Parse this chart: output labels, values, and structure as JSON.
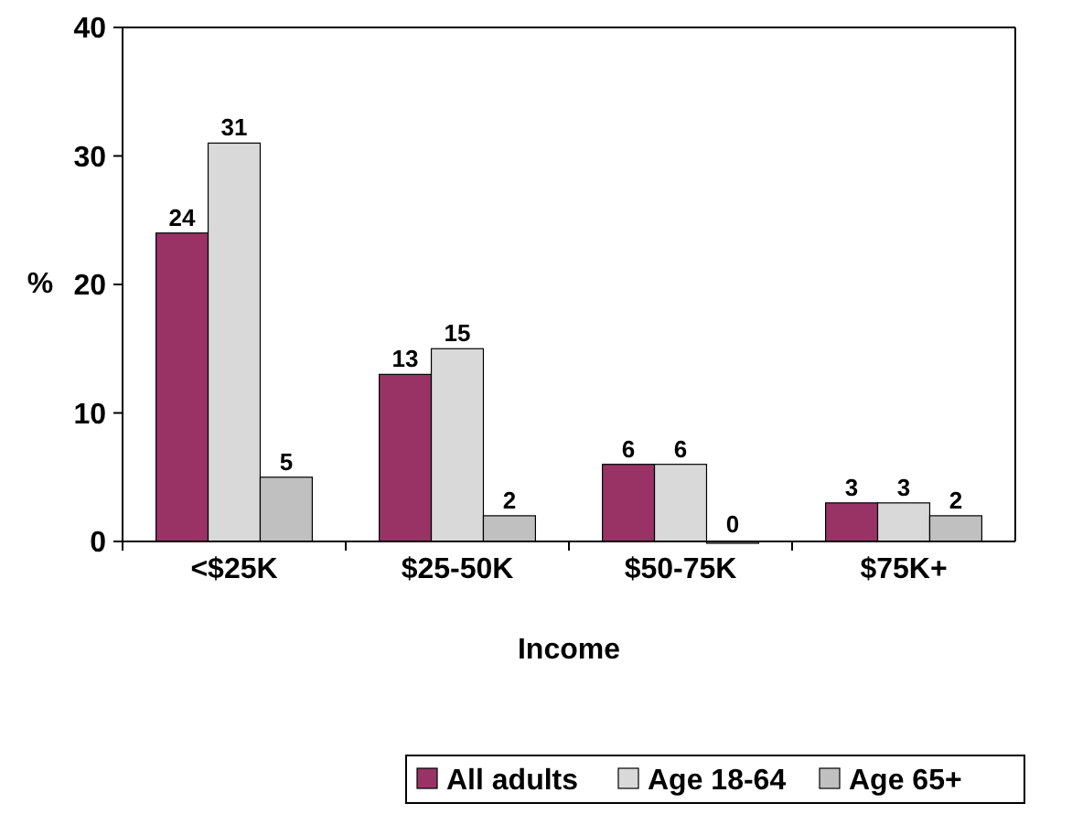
{
  "chart_data": {
    "type": "bar",
    "xlabel": "Income",
    "ylabel": "%",
    "categories": [
      "<$25K",
      "$25-50K",
      "$50-75K",
      "$75K+"
    ],
    "series": [
      {
        "name": "All adults",
        "color": "#993366",
        "values": [
          24,
          13,
          6,
          3
        ]
      },
      {
        "name": "Age 18-64",
        "color": "#d9d9d9",
        "values": [
          31,
          15,
          6,
          3
        ]
      },
      {
        "name": "Age 65+",
        "color": "#c0c0c0",
        "values": [
          5,
          2,
          0,
          2
        ]
      }
    ],
    "ylim": [
      0,
      40
    ],
    "yticks": [
      0,
      10,
      20,
      30,
      40
    ],
    "grid": false,
    "legend": "bottom",
    "data_labels": true
  }
}
